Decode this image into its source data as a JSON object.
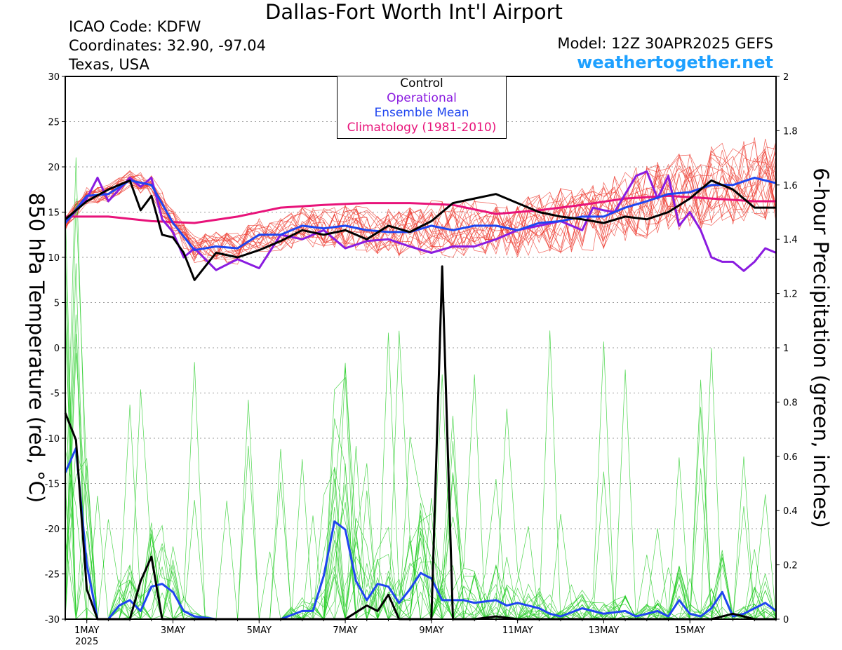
{
  "header": {
    "title": "Dallas-Fort Worth Int'l Airport",
    "icao": "ICAO Code: KDFW",
    "coords": "Coordinates: 32.90, -97.04",
    "region": "Texas, USA",
    "model": "Model: 12Z 30APR2025 GEFS",
    "site": "weathertogether.net"
  },
  "legend": {
    "control": "Control",
    "operational": "Operational",
    "ensemble_mean": "Ensemble Mean",
    "climatology": "Climatology (1981-2010)"
  },
  "colors": {
    "control": "#000000",
    "operational": "#8a1be0",
    "ensemble_mean": "#1f45f0",
    "climatology": "#e8137a",
    "members_temp": "#ee3b30",
    "members_precip": "#22cc22",
    "site": "#1ea0ff"
  },
  "chart_data": {
    "type": "line",
    "ylabel_left": "850 hPa Temperature (red, °C)",
    "ylabel_right": "6-hour Precipitation (green, inches)",
    "ylim_left": [
      -30,
      30
    ],
    "ylim_right": [
      0,
      2
    ],
    "grid": "horizontal dotted",
    "x_unit": "days since 30 Apr 2025 12Z",
    "xlim": [
      0,
      16.5
    ],
    "x_ticks": [
      {
        "x": 0.5,
        "label": "1MAY",
        "sub": "2025"
      },
      {
        "x": 2.5,
        "label": "3MAY"
      },
      {
        "x": 4.5,
        "label": "5MAY"
      },
      {
        "x": 6.5,
        "label": "7MAY"
      },
      {
        "x": 8.5,
        "label": "9MAY"
      },
      {
        "x": 10.5,
        "label": "11MAY"
      },
      {
        "x": 12.5,
        "label": "13MAY"
      },
      {
        "x": 14.5,
        "label": "15MAY"
      }
    ],
    "left_ticks": [
      30,
      25,
      20,
      15,
      10,
      5,
      0,
      -5,
      -10,
      -15,
      -20,
      -25,
      -30
    ],
    "right_ticks": [
      "2",
      "1.8",
      "1.6",
      "1.4",
      "1.2",
      "1",
      "0.8",
      "0.6",
      "0.4",
      "0.2",
      "0"
    ],
    "series": [
      {
        "name": "Control",
        "variable": "temperature",
        "x": [
          0,
          0.5,
          1,
          1.5,
          1.75,
          2,
          2.25,
          2.5,
          2.75,
          3,
          3.5,
          4,
          4.5,
          5,
          5.5,
          6,
          6.5,
          7,
          7.5,
          8,
          8.5,
          9,
          9.5,
          10,
          10.5,
          11,
          11.5,
          12,
          12.5,
          13,
          13.5,
          14,
          14.5,
          15,
          15.5,
          16,
          16.5
        ],
        "values": [
          14.2,
          16.2,
          17.5,
          18.5,
          15.2,
          16.8,
          12.5,
          12.2,
          10.5,
          7.5,
          10.5,
          10.0,
          10.8,
          11.8,
          13.0,
          12.5,
          13.0,
          12.0,
          13.5,
          12.8,
          14.0,
          16.0,
          16.5,
          17.0,
          16.0,
          15.0,
          14.5,
          14.2,
          13.8,
          14.5,
          14.2,
          15.0,
          16.5,
          18.5,
          17.5,
          15.5,
          15.5
        ]
      },
      {
        "name": "Operational",
        "variable": "temperature",
        "x": [
          0,
          0.5,
          0.75,
          1,
          1.25,
          1.5,
          1.75,
          2,
          2.25,
          2.5,
          2.75,
          3,
          3.5,
          4,
          4.5,
          5,
          5.5,
          6,
          6.5,
          7,
          7.5,
          8,
          8.5,
          9,
          9.5,
          10,
          10.5,
          11,
          11.5,
          12,
          12.25,
          12.5,
          12.75,
          13,
          13.25,
          13.5,
          13.75,
          14,
          14.25,
          14.5,
          14.75,
          15,
          15.25,
          15.5,
          15.75,
          16,
          16.25,
          16.5
        ],
        "values": [
          13.8,
          16.5,
          18.8,
          16.2,
          17.5,
          18.8,
          17.8,
          18.8,
          14.2,
          12.8,
          10.0,
          11.0,
          8.6,
          9.8,
          8.8,
          12.5,
          12.0,
          13.0,
          11.0,
          11.8,
          12.0,
          11.2,
          10.5,
          11.2,
          11.2,
          12.0,
          13.0,
          13.5,
          14.0,
          13.0,
          15.5,
          15.2,
          15.0,
          17.0,
          19.0,
          19.5,
          16.5,
          19.0,
          13.5,
          15.0,
          13.0,
          10.0,
          9.5,
          9.5,
          8.5,
          9.5,
          11.0,
          10.5
        ]
      },
      {
        "name": "Ensemble Mean",
        "variable": "temperature",
        "x": [
          0,
          0.5,
          1,
          1.5,
          2,
          2.5,
          3,
          3.5,
          4,
          4.5,
          5,
          5.5,
          6,
          6.5,
          7,
          7.5,
          8,
          8.5,
          9,
          9.5,
          10,
          10.5,
          11,
          11.5,
          12,
          12.5,
          13,
          13.5,
          14,
          14.5,
          15,
          15.5,
          16,
          16.5
        ],
        "values": [
          13.8,
          16.8,
          17.0,
          18.5,
          18.0,
          13.8,
          10.8,
          11.2,
          11.0,
          12.5,
          12.5,
          13.5,
          13.2,
          13.5,
          13.0,
          12.8,
          12.8,
          13.5,
          13.0,
          13.5,
          13.5,
          13.0,
          13.8,
          14.0,
          14.5,
          14.5,
          15.5,
          16.2,
          17.0,
          17.2,
          18.0,
          18.0,
          18.8,
          18.2
        ]
      },
      {
        "name": "Climatology (1981-2010)",
        "variable": "temperature",
        "x": [
          0,
          1,
          2,
          3,
          4,
          5,
          6,
          7,
          8,
          9,
          10,
          11,
          12,
          13,
          14,
          15,
          16,
          16.5
        ],
        "values": [
          14.5,
          14.5,
          14.0,
          13.8,
          14.5,
          15.5,
          15.8,
          16.0,
          16.0,
          15.8,
          14.8,
          15.2,
          15.8,
          16.5,
          16.8,
          16.5,
          16.2,
          16.2
        ]
      },
      {
        "name": "Control",
        "variable": "precipitation",
        "x": [
          0,
          0.25,
          0.5,
          0.75,
          1,
          1.5,
          1.75,
          2,
          2.25,
          2.5,
          3,
          4,
          5,
          6,
          6.5,
          7,
          7.25,
          7.5,
          7.75,
          8,
          8.25,
          8.5,
          8.75,
          9,
          9.25,
          9.5,
          10,
          10.5,
          11,
          12,
          13,
          14,
          15,
          15.5,
          16,
          16.5
        ],
        "values": [
          0.76,
          0.66,
          0.11,
          0.0,
          0.0,
          0.0,
          0.14,
          0.23,
          0.0,
          0.0,
          0.0,
          0.0,
          0.0,
          0.0,
          0.0,
          0.05,
          0.03,
          0.09,
          0.0,
          0.0,
          0.0,
          0.0,
          1.3,
          0.0,
          0.0,
          0.0,
          0.01,
          0.0,
          0.0,
          0.0,
          0.0,
          0.0,
          0.0,
          0.02,
          0.0,
          0.0
        ]
      },
      {
        "name": "Ensemble Mean",
        "variable": "precipitation",
        "x": [
          0,
          0.25,
          0.5,
          0.75,
          1,
          1.25,
          1.5,
          1.75,
          2,
          2.25,
          2.5,
          2.75,
          3,
          3.5,
          4,
          4.5,
          5,
          5.5,
          5.75,
          6,
          6.25,
          6.5,
          6.75,
          7,
          7.25,
          7.5,
          7.75,
          8,
          8.25,
          8.5,
          8.75,
          9,
          9.25,
          9.5,
          10,
          10.25,
          10.5,
          11,
          11.25,
          11.5,
          12,
          12.5,
          13,
          13.25,
          13.5,
          13.75,
          14,
          14.25,
          14.5,
          14.75,
          15,
          15.25,
          15.5,
          15.75,
          16,
          16.25,
          16.5
        ],
        "values": [
          0.54,
          0.63,
          0.2,
          0.0,
          0.0,
          0.05,
          0.07,
          0.03,
          0.12,
          0.13,
          0.1,
          0.03,
          0.01,
          0.0,
          0.0,
          0.0,
          0.0,
          0.03,
          0.03,
          0.16,
          0.36,
          0.33,
          0.14,
          0.07,
          0.13,
          0.12,
          0.06,
          0.11,
          0.17,
          0.15,
          0.07,
          0.07,
          0.07,
          0.06,
          0.07,
          0.05,
          0.06,
          0.04,
          0.02,
          0.01,
          0.04,
          0.02,
          0.03,
          0.01,
          0.02,
          0.03,
          0.01,
          0.07,
          0.02,
          0.01,
          0.04,
          0.1,
          0.01,
          0.02,
          0.04,
          0.06,
          0.03
        ]
      }
    ]
  }
}
